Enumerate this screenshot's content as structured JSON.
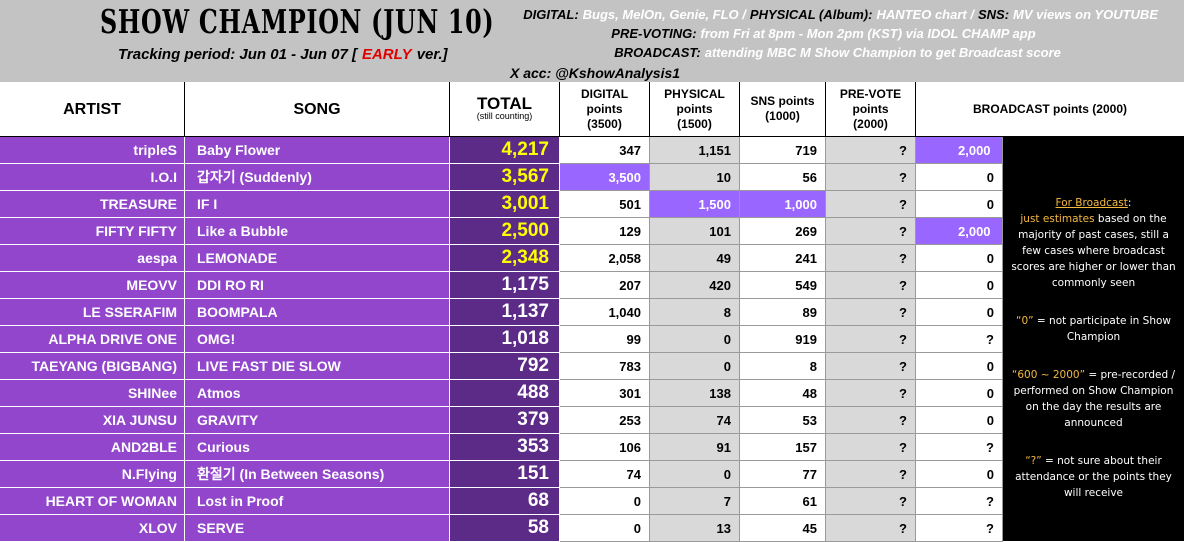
{
  "header": {
    "title": "SHOW CHAMPION (JUN 10)",
    "tracking": {
      "before": "Tracking period: Jun 01 - Jun 07 [",
      "highlight": "EARLY",
      "after": "ver.]"
    },
    "info_lines": [
      [
        {
          "label": "DIGITAL:",
          "value": "Bugs, MelOn, Genie, FLO /"
        },
        {
          "label": "PHYSICAL (Album):",
          "value": "HANTEO chart /"
        },
        {
          "label": "SNS:",
          "value": "MV views on YOUTUBE"
        }
      ],
      [
        {
          "label": "PRE-VOTING:",
          "value": "from Fri at 8pm - Mon 2pm (KST) via IDOL CHAMP app"
        }
      ],
      [
        {
          "label": "BROADCAST:",
          "value": "attending MBC M Show Champion to get Broadcast score"
        }
      ]
    ],
    "x_account": "X acc: @KshowAnalysis1"
  },
  "table": {
    "columns": [
      {
        "lines": [
          "ARTIST"
        ]
      },
      {
        "lines": [
          "SONG"
        ]
      },
      {
        "lines": [
          "TOTAL"
        ],
        "sub": "(still counting)"
      },
      {
        "lines": [
          "DIGITAL",
          "points",
          "(3500)"
        ]
      },
      {
        "lines": [
          "PHYSICAL",
          "points",
          "(1500)"
        ]
      },
      {
        "lines": [
          "SNS points",
          "(1000)"
        ]
      },
      {
        "lines": [
          "PRE-VOTE",
          "points",
          "(2000)"
        ]
      },
      {
        "lines": [
          "BROADCAST points (2000)"
        ]
      }
    ],
    "rows": [
      [
        "tripleS",
        "Baby Flower",
        "4,217",
        "347",
        "1,151",
        "719",
        "?",
        "2,000"
      ],
      [
        "I.O.I",
        "갑자기 (Suddenly)",
        "3,567",
        "3,500",
        "10",
        "56",
        "?",
        "0"
      ],
      [
        "TREASURE",
        "IF I",
        "3,001",
        "501",
        "1,500",
        "1,000",
        "?",
        "0"
      ],
      [
        "FIFTY FIFTY",
        "Like a Bubble",
        "2,500",
        "129",
        "101",
        "269",
        "?",
        "2,000"
      ],
      [
        "aespa",
        "LEMONADE",
        "2,348",
        "2,058",
        "49",
        "241",
        "?",
        "0"
      ],
      [
        "MEOVV",
        "DDI RO RI",
        "1,175",
        "207",
        "420",
        "549",
        "?",
        "0"
      ],
      [
        "LE SSERAFIM",
        "BOOMPALA",
        "1,137",
        "1,040",
        "8",
        "89",
        "?",
        "0"
      ],
      [
        "ALPHA DRIVE ONE",
        "OMG!",
        "1,018",
        "99",
        "0",
        "919",
        "?",
        "?"
      ],
      [
        "TAEYANG (BIGBANG)",
        "LIVE FAST DIE SLOW",
        "792",
        "783",
        "0",
        "8",
        "?",
        "0"
      ],
      [
        "SHINee",
        "Atmos",
        "488",
        "301",
        "138",
        "48",
        "?",
        "0"
      ],
      [
        "XIA JUNSU",
        "GRAVITY",
        "379",
        "253",
        "74",
        "53",
        "?",
        "0"
      ],
      [
        "AND2BLE",
        "Curious",
        "353",
        "106",
        "91",
        "157",
        "?",
        "?"
      ],
      [
        "N.Flying",
        "환절기 (In Between Seasons)",
        "151",
        "74",
        "0",
        "77",
        "?",
        "0"
      ],
      [
        "HEART OF WOMAN",
        "Lost in Proof",
        "68",
        "0",
        "7",
        "61",
        "?",
        "?"
      ],
      [
        "XLOV",
        "SERVE",
        "58",
        "0",
        "13",
        "45",
        "?",
        "?"
      ]
    ]
  },
  "notes": [
    [
      {
        "text": "For Broadcast",
        "style": "accent-underline"
      },
      {
        "text": ":"
      },
      {
        "text": "just estimates",
        "style": "accent"
      },
      {
        "text": " based on the majority of past cases, still a few cases where broadcast scores are higher or lower than commonly seen"
      }
    ],
    [
      {
        "text": "“0”",
        "style": "accent"
      },
      {
        "text": " = not participate in Show Champion"
      }
    ],
    [
      {
        "text": "“600 ~ 2000”",
        "style": "accent"
      },
      {
        "text": " = pre-recorded / performed on Show Champion on the day the results are announced"
      }
    ],
    [
      {
        "text": "“?”",
        "style": "accent"
      },
      {
        "text": " = not sure about their attendance or the points they will receive"
      }
    ]
  ]
}
